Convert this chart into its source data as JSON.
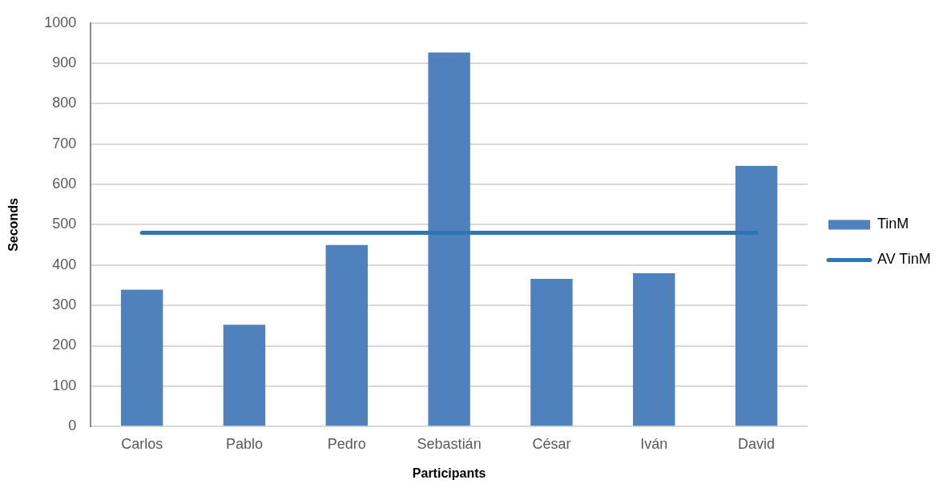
{
  "chart_data": {
    "type": "bar",
    "xlabel": "Participants",
    "ylabel": "Seconds",
    "categories": [
      "Carlos",
      "Pablo",
      "Pedro",
      "Sebastián",
      "César",
      "Iván",
      "David"
    ],
    "series": [
      {
        "name": "TinM",
        "color": "#4f81bd",
        "values": [
          339,
          252,
          450,
          927,
          366,
          380,
          646
        ]
      },
      {
        "name": "AV TinM",
        "type": "line",
        "color": "#2e75b6",
        "values": [
          480,
          480,
          480,
          480,
          480,
          480,
          480
        ]
      }
    ],
    "ylim": [
      0,
      1000
    ],
    "yticks": [
      0,
      100,
      200,
      300,
      400,
      500,
      600,
      700,
      800,
      900,
      1000
    ],
    "grid": "y",
    "legend": "right",
    "marker": "none"
  }
}
